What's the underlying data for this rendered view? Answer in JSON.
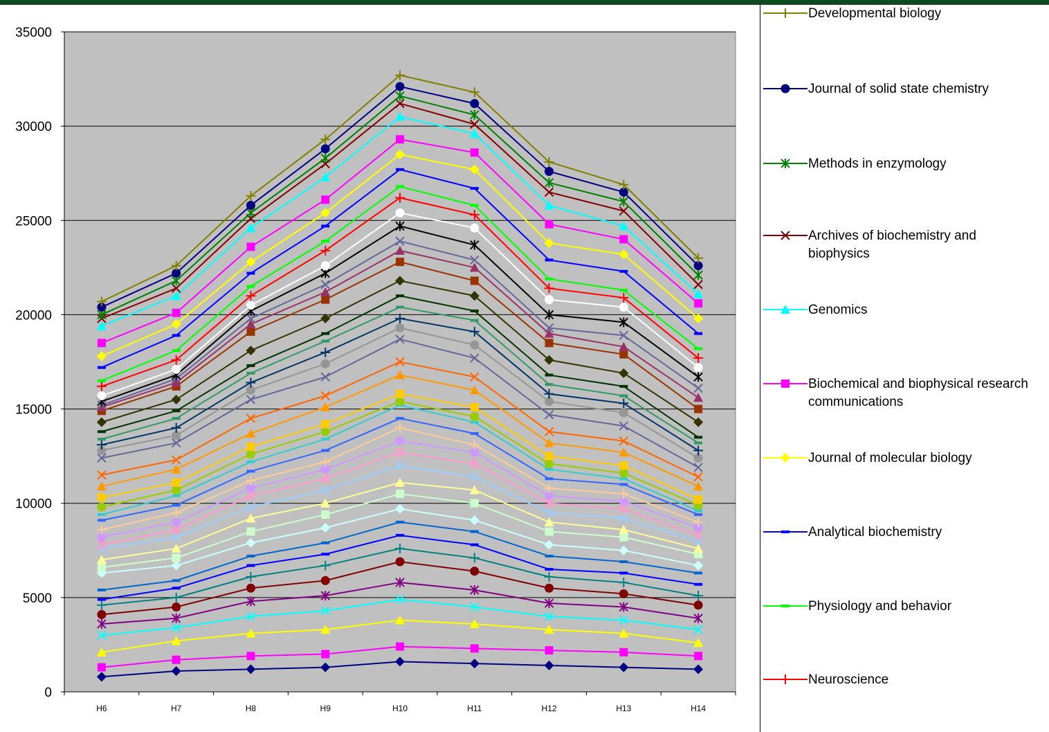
{
  "chart_data": {
    "type": "line",
    "title": "",
    "xlabel": "",
    "ylabel": "",
    "categories": [
      "H6",
      "H7",
      "H8",
      "H9",
      "H10",
      "H11",
      "H12",
      "H13",
      "H14"
    ],
    "ylim": [
      0,
      35000
    ],
    "yticks": [
      0,
      5000,
      10000,
      15000,
      20000,
      25000,
      30000,
      35000
    ],
    "ytick_labels": [
      "0",
      "5000",
      "10000",
      "15000",
      "20000",
      "25000",
      "30000",
      "35000"
    ],
    "grid": "horizontal major gridlines",
    "plot_background": "#c0c0c0",
    "legend_position": "right (partially visible)",
    "series": [
      {
        "name": "Developmental biology",
        "color": "#808000",
        "marker": "plus",
        "values": [
          20700,
          22600,
          26300,
          29300,
          32700,
          31800,
          28100,
          26900,
          23000
        ]
      },
      {
        "name": "Journal of solid state chemistry",
        "color": "#000080",
        "marker": "circle",
        "values": [
          20400,
          22200,
          25800,
          28800,
          32100,
          31200,
          27600,
          26500,
          22600
        ]
      },
      {
        "name": "Methods in enzymology",
        "color": "#008000",
        "marker": "asterisk",
        "values": [
          20000,
          21800,
          25400,
          28300,
          31600,
          30600,
          27000,
          26000,
          22100
        ]
      },
      {
        "name": "Archives of biochemistry and biophysics",
        "color": "#800000",
        "marker": "x",
        "values": [
          19800,
          21400,
          25100,
          28000,
          31200,
          30100,
          26500,
          25500,
          21600
        ]
      },
      {
        "name": "Genomics",
        "color": "#00ffff",
        "marker": "triangle",
        "values": [
          19400,
          21000,
          24600,
          27300,
          30500,
          29600,
          25800,
          24700,
          21100
        ]
      },
      {
        "name": "Biochemical and biophysical research communications",
        "color": "#ff00ff",
        "marker": "square",
        "values": [
          18500,
          20100,
          23600,
          26100,
          29300,
          28600,
          24800,
          24000,
          20600
        ]
      },
      {
        "name": "Journal of molecular biology",
        "color": "#ffff00",
        "marker": "diamond",
        "values": [
          17800,
          19500,
          22800,
          25400,
          28500,
          27700,
          23800,
          23200,
          19800
        ]
      },
      {
        "name": "Analytical biochemistry",
        "color": "#0000ff",
        "marker": "dash",
        "values": [
          17200,
          18900,
          22200,
          24700,
          27700,
          26700,
          22900,
          22300,
          19000
        ]
      },
      {
        "name": "Physiology and behavior",
        "color": "#00ff00",
        "marker": "dash",
        "values": [
          16500,
          18100,
          21500,
          23900,
          26800,
          25800,
          21900,
          21300,
          18200
        ]
      },
      {
        "name": "Neuroscience",
        "color": "#ff0000",
        "marker": "plus",
        "values": [
          16200,
          17600,
          21000,
          23400,
          26200,
          25300,
          21400,
          20900,
          17700
        ]
      },
      {
        "color": "#ffffff",
        "marker": "circle",
        "values": [
          15700,
          17100,
          20500,
          22600,
          25400,
          24600,
          20800,
          20400,
          17200
        ]
      },
      {
        "color": "#000000",
        "marker": "asterisk",
        "values": [
          15400,
          16800,
          20200,
          22200,
          24700,
          23700,
          20000,
          19600,
          16700
        ]
      },
      {
        "color": "#666699",
        "marker": "x",
        "values": [
          15200,
          16600,
          19800,
          21600,
          23900,
          22900,
          19300,
          18900,
          16100
        ]
      },
      {
        "color": "#993366",
        "marker": "triangle",
        "values": [
          15100,
          16400,
          19500,
          21200,
          23400,
          22500,
          19000,
          18300,
          15600
        ]
      },
      {
        "color": "#993300",
        "marker": "square",
        "values": [
          14900,
          16200,
          19100,
          20800,
          22800,
          21800,
          18500,
          17900,
          15000
        ]
      },
      {
        "color": "#333300",
        "marker": "diamond",
        "values": [
          14300,
          15500,
          18100,
          19800,
          21800,
          21000,
          17600,
          16900,
          14300
        ]
      },
      {
        "color": "#003300",
        "marker": "dash",
        "values": [
          13800,
          14900,
          17300,
          19000,
          21000,
          20200,
          16800,
          16200,
          13500
        ]
      },
      {
        "color": "#339966",
        "marker": "dash",
        "values": [
          13400,
          14500,
          16900,
          18600,
          20400,
          19700,
          16300,
          15700,
          13200
        ]
      },
      {
        "color": "#003366",
        "marker": "plus",
        "values": [
          13100,
          14000,
          16400,
          18000,
          19800,
          19100,
          15800,
          15300,
          12800
        ]
      },
      {
        "color": "#969696",
        "marker": "circle",
        "values": [
          12800,
          13600,
          16000,
          17400,
          19300,
          18400,
          15400,
          14800,
          12400
        ]
      },
      {
        "color": "#666699",
        "marker": "x",
        "values": [
          12400,
          13200,
          15500,
          16700,
          18700,
          17700,
          14700,
          14100,
          11900
        ]
      },
      {
        "color": "#ff6600",
        "marker": "x",
        "values": [
          11500,
          12300,
          14500,
          15700,
          17500,
          16700,
          13800,
          13300,
          11400
        ]
      },
      {
        "color": "#ff9900",
        "marker": "triangle",
        "values": [
          10900,
          11800,
          13700,
          15100,
          16800,
          16000,
          13200,
          12700,
          10900
        ]
      },
      {
        "color": "#ffcc00",
        "marker": "square",
        "values": [
          10300,
          11100,
          13000,
          14200,
          15800,
          15100,
          12500,
          12000,
          10200
        ]
      },
      {
        "color": "#99cc00",
        "marker": "circle",
        "values": [
          9800,
          10700,
          12600,
          13800,
          15400,
          14600,
          12100,
          11600,
          9900
        ]
      },
      {
        "color": "#33cccc",
        "marker": "dash",
        "values": [
          9400,
          10400,
          12200,
          13400,
          15200,
          14300,
          11800,
          11300,
          9600
        ]
      },
      {
        "color": "#3366ff",
        "marker": "dash",
        "values": [
          9100,
          9900,
          11700,
          12800,
          14500,
          13700,
          11300,
          11000,
          9400
        ]
      },
      {
        "color": "#ffcc99",
        "marker": "plus",
        "values": [
          8600,
          9500,
          11200,
          12200,
          14000,
          13100,
          10800,
          10500,
          9000
        ]
      },
      {
        "color": "#cc99ff",
        "marker": "circle",
        "values": [
          8200,
          9000,
          10800,
          11800,
          13300,
          12700,
          10400,
          10100,
          8700
        ]
      },
      {
        "color": "#ff99cc",
        "marker": "asterisk",
        "values": [
          7800,
          8600,
          10400,
          11300,
          12700,
          12100,
          10000,
          9700,
          8300
        ]
      },
      {
        "color": "#99ccff",
        "marker": "x",
        "values": [
          7600,
          8200,
          9800,
          10700,
          12000,
          11400,
          9500,
          9200,
          8000
        ]
      },
      {
        "color": "#ffff99",
        "marker": "triangle",
        "values": [
          7000,
          7600,
          9200,
          10000,
          11100,
          10700,
          9000,
          8600,
          7600
        ]
      },
      {
        "color": "#ccffcc",
        "marker": "square",
        "values": [
          6600,
          7100,
          8500,
          9400,
          10500,
          10000,
          8500,
          8200,
          7300
        ]
      },
      {
        "color": "#ccffff",
        "marker": "diamond",
        "values": [
          6300,
          6700,
          7900,
          8700,
          9700,
          9100,
          7800,
          7500,
          6700
        ]
      },
      {
        "color": "#0066cc",
        "marker": "dash",
        "values": [
          5400,
          5900,
          7200,
          7900,
          9000,
          8500,
          7200,
          6900,
          6300
        ]
      },
      {
        "color": "#0000ff",
        "marker": "dash",
        "values": [
          4900,
          5500,
          6700,
          7300,
          8300,
          7800,
          6500,
          6300,
          5700
        ]
      },
      {
        "color": "#008080",
        "marker": "plus",
        "values": [
          4600,
          5000,
          6100,
          6700,
          7600,
          7100,
          6100,
          5800,
          5100
        ]
      },
      {
        "color": "#800000",
        "marker": "circle",
        "values": [
          4100,
          4500,
          5500,
          5900,
          6900,
          6400,
          5500,
          5200,
          4600
        ]
      },
      {
        "color": "#800080",
        "marker": "asterisk",
        "values": [
          3600,
          3900,
          4800,
          5100,
          5800,
          5400,
          4700,
          4500,
          3900
        ]
      },
      {
        "color": "#00ffff",
        "marker": "x",
        "values": [
          3000,
          3400,
          4000,
          4300,
          4900,
          4500,
          4000,
          3800,
          3300
        ]
      },
      {
        "color": "#ffff00",
        "marker": "triangle",
        "values": [
          2100,
          2700,
          3100,
          3300,
          3800,
          3600,
          3300,
          3100,
          2600
        ]
      },
      {
        "color": "#ff00ff",
        "marker": "square",
        "values": [
          1300,
          1700,
          1900,
          2000,
          2400,
          2300,
          2200,
          2100,
          1900
        ]
      },
      {
        "color": "#000080",
        "marker": "diamond",
        "values": [
          800,
          1100,
          1200,
          1300,
          1600,
          1500,
          1400,
          1300,
          1200
        ]
      }
    ]
  }
}
